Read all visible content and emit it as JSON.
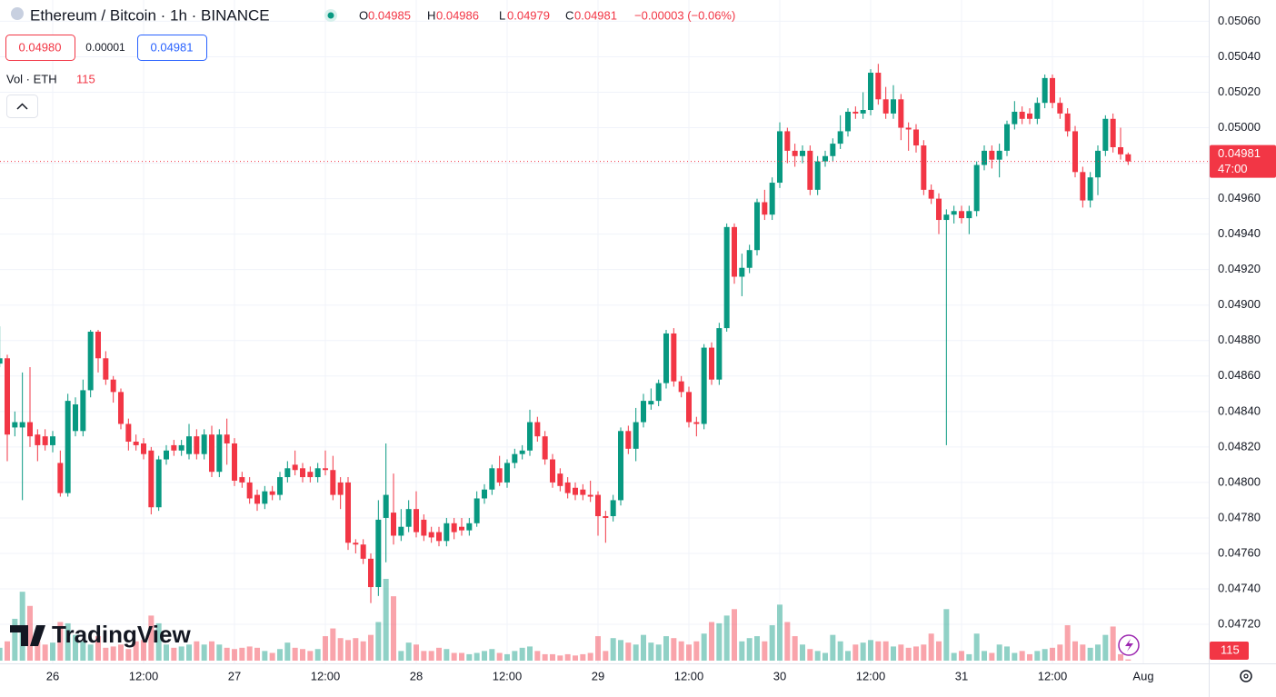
{
  "chart_data": {
    "type": "candlestick",
    "title": "Ethereum / Bitcoin · 1h · BINANCE",
    "ohlc_letters": [
      "O",
      "H",
      "L",
      "C"
    ],
    "change": "−0.00003 (−0.06%)",
    "bid": "0.04980",
    "spread": "0.00001",
    "ask": "0.04981",
    "volume_title": "Vol · ETH",
    "countdown": "47:00",
    "watermark": "TradingView",
    "up_color": "#089981",
    "down_color": "#f23645",
    "grid": true,
    "ylim": [
      0.04698,
      0.05072
    ],
    "yticks": [
      {
        "value": 0.0506,
        "label": "0.05060"
      },
      {
        "value": 0.0504,
        "label": "0.05040"
      },
      {
        "value": 0.0502,
        "label": "0.05020"
      },
      {
        "value": 0.05,
        "label": "0.05000"
      },
      {
        "value": 0.0498,
        "label": "0.04980"
      },
      {
        "value": 0.0496,
        "label": "0.04960"
      },
      {
        "value": 0.0494,
        "label": "0.04940"
      },
      {
        "value": 0.0492,
        "label": "0.04920"
      },
      {
        "value": 0.049,
        "label": "0.04900"
      },
      {
        "value": 0.0488,
        "label": "0.04880"
      },
      {
        "value": 0.0486,
        "label": "0.04860"
      },
      {
        "value": 0.0484,
        "label": "0.04840"
      },
      {
        "value": 0.0482,
        "label": "0.04820"
      },
      {
        "value": 0.048,
        "label": "0.04800"
      },
      {
        "value": 0.0478,
        "label": "0.04780"
      },
      {
        "value": 0.0476,
        "label": "0.04760"
      },
      {
        "value": 0.0474,
        "label": "0.04740"
      },
      {
        "value": 0.0472,
        "label": "0.04720"
      }
    ],
    "xticks": [
      "26",
      "12:00",
      "27",
      "12:00",
      "28",
      "12:00",
      "29",
      "12:00",
      "30",
      "12:00",
      "31",
      "12:00",
      "Aug"
    ],
    "open": [
      0.04867,
      0.0487,
      0.04831,
      0.04831,
      0.04834,
      0.04827,
      0.04826,
      0.04821,
      0.04811,
      0.04794,
      0.04829,
      0.04829,
      0.04852,
      0.04885,
      0.0487,
      0.04858,
      0.04851,
      0.04833,
      0.04823,
      0.04822,
      0.04818,
      0.04786,
      0.04813,
      0.04821,
      0.04818,
      0.04816,
      0.04826,
      0.04816,
      0.04827,
      0.04806,
      0.04827,
      0.04822,
      0.04803,
      0.048,
      0.04793,
      0.04788,
      0.04795,
      0.04793,
      0.04803,
      0.0481,
      0.04808,
      0.04806,
      0.04803,
      0.04808,
      0.04807,
      0.048,
      0.048,
      0.04766,
      0.04765,
      0.04757,
      0.04741,
      0.0478,
      0.04783,
      0.0477,
      0.04775,
      0.04785,
      0.04779,
      0.04772,
      0.04772,
      0.04767,
      0.04777,
      0.04775,
      0.04773,
      0.04777,
      0.04791,
      0.04796,
      0.04808,
      0.048,
      0.04811,
      0.04816,
      0.04818,
      0.04834,
      0.04826,
      0.04813,
      0.04805,
      0.048,
      0.04797,
      0.04796,
      0.04793,
      0.04793,
      0.04781,
      0.04781,
      0.0479,
      0.04829,
      0.04819,
      0.04834,
      0.04844,
      0.04846,
      0.04856,
      0.04884,
      0.04857,
      0.04851,
      0.04834,
      0.04833,
      0.04876,
      0.04858,
      0.04887,
      0.04944,
      0.04916,
      0.04921,
      0.04931,
      0.04958,
      0.04951,
      0.04969,
      0.04998,
      0.04987,
      0.04984,
      0.04987,
      0.04965,
      0.04981,
      0.04984,
      0.04991,
      0.04998,
      0.05009,
      0.05008,
      0.0501,
      0.05031,
      0.05016,
      0.05008,
      0.05016,
      0.05,
      0.04999,
      0.0499,
      0.04965,
      0.0496,
      0.04948,
      0.04951,
      0.04953,
      0.04949,
      0.04953,
      0.04979,
      0.04987,
      0.04982,
      0.04987,
      0.05002,
      0.05009,
      0.05008,
      0.05005,
      0.05014,
      0.05028,
      0.05014,
      0.05008,
      0.04998,
      0.04975,
      0.04959,
      0.04972,
      0.04987,
      0.05005,
      0.04989,
      0.04985
    ],
    "high": [
      0.04888,
      0.04872,
      0.0484,
      0.04862,
      0.04865,
      0.0483,
      0.0483,
      0.04829,
      0.04818,
      0.0485,
      0.04848,
      0.04858,
      0.04886,
      0.04886,
      0.04874,
      0.0486,
      0.04853,
      0.04836,
      0.04827,
      0.04825,
      0.0482,
      0.04815,
      0.04821,
      0.04824,
      0.04824,
      0.04833,
      0.0483,
      0.0483,
      0.04832,
      0.0483,
      0.04836,
      0.04825,
      0.04806,
      0.04803,
      0.04796,
      0.04798,
      0.04798,
      0.04806,
      0.04812,
      0.04818,
      0.04811,
      0.04809,
      0.04811,
      0.04818,
      0.04815,
      0.04803,
      0.04803,
      0.04768,
      0.04768,
      0.0476,
      0.0479,
      0.04822,
      0.04805,
      0.04785,
      0.0479,
      0.04795,
      0.04782,
      0.04775,
      0.04775,
      0.0478,
      0.0478,
      0.0478,
      0.0478,
      0.04795,
      0.04799,
      0.0481,
      0.04815,
      0.04813,
      0.04819,
      0.04821,
      0.04841,
      0.04837,
      0.04829,
      0.04816,
      0.04808,
      0.04803,
      0.048,
      0.04799,
      0.04801,
      0.04795,
      0.04784,
      0.04793,
      0.04831,
      0.04832,
      0.04842,
      0.0485,
      0.04853,
      0.04858,
      0.04886,
      0.04887,
      0.0486,
      0.04854,
      0.04837,
      0.04878,
      0.04879,
      0.0489,
      0.04946,
      0.04946,
      0.04929,
      0.04934,
      0.0496,
      0.04965,
      0.04972,
      0.05003,
      0.05,
      0.04991,
      0.0499,
      0.0499,
      0.04984,
      0.04987,
      0.04994,
      0.05007,
      0.05011,
      0.05012,
      0.0502,
      0.05033,
      0.05036,
      0.05023,
      0.05024,
      0.05019,
      0.05003,
      0.05002,
      0.04993,
      0.04968,
      0.04963,
      0.04954,
      0.04956,
      0.04956,
      0.04956,
      0.04981,
      0.0499,
      0.0499,
      0.04991,
      0.05004,
      0.05015,
      0.05012,
      0.05011,
      0.05017,
      0.0503,
      0.0503,
      0.05017,
      0.05011,
      0.05001,
      0.04978,
      0.04975,
      0.0499,
      0.05007,
      0.05008,
      0.05,
      0.04986
    ],
    "low": [
      0.04865,
      0.04812,
      0.04826,
      0.0479,
      0.0482,
      0.04812,
      0.04818,
      0.04817,
      0.04792,
      0.04792,
      0.04826,
      0.04826,
      0.04848,
      0.04862,
      0.04855,
      0.04845,
      0.0483,
      0.04818,
      0.04818,
      0.04813,
      0.04782,
      0.04784,
      0.0481,
      0.04815,
      0.04815,
      0.04813,
      0.04813,
      0.04813,
      0.04803,
      0.04803,
      0.0481,
      0.04798,
      0.04797,
      0.04788,
      0.04784,
      0.04785,
      0.0479,
      0.0479,
      0.048,
      0.04804,
      0.048,
      0.048,
      0.048,
      0.04804,
      0.0479,
      0.04785,
      0.04762,
      0.0476,
      0.04754,
      0.04732,
      0.04736,
      0.04755,
      0.04765,
      0.04767,
      0.04772,
      0.04769,
      0.04767,
      0.04766,
      0.04764,
      0.04764,
      0.04768,
      0.0477,
      0.0477,
      0.04775,
      0.04788,
      0.04793,
      0.04798,
      0.04797,
      0.04808,
      0.04813,
      0.04815,
      0.04823,
      0.0481,
      0.04797,
      0.04795,
      0.04791,
      0.0479,
      0.0479,
      0.04789,
      0.0477,
      0.04766,
      0.04778,
      0.04787,
      0.04816,
      0.04812,
      0.04831,
      0.04841,
      0.04843,
      0.04853,
      0.04854,
      0.04848,
      0.04831,
      0.04826,
      0.0483,
      0.04855,
      0.04855,
      0.04885,
      0.04912,
      0.04905,
      0.04918,
      0.04928,
      0.04948,
      0.04948,
      0.04966,
      0.0498,
      0.04978,
      0.0498,
      0.04962,
      0.04962,
      0.04978,
      0.04981,
      0.04988,
      0.04995,
      0.05005,
      0.05005,
      0.05007,
      0.05013,
      0.05005,
      0.05005,
      0.04993,
      0.04987,
      0.04986,
      0.04962,
      0.04957,
      0.0494,
      0.04821,
      0.04946,
      0.04946,
      0.0494,
      0.0495,
      0.04976,
      0.04977,
      0.04972,
      0.04984,
      0.04999,
      0.05002,
      0.05002,
      0.05002,
      0.05011,
      0.05011,
      0.05005,
      0.04995,
      0.04972,
      0.04955,
      0.04955,
      0.04962,
      0.04984,
      0.04986,
      0.04982,
      0.04979
    ],
    "close": [
      0.0487,
      0.04827,
      0.04834,
      0.04834,
      0.04826,
      0.04821,
      0.04821,
      0.04826,
      0.04794,
      0.04846,
      0.04844,
      0.04852,
      0.04885,
      0.0487,
      0.04858,
      0.04851,
      0.04833,
      0.04823,
      0.04821,
      0.04816,
      0.04786,
      0.04813,
      0.04818,
      0.04818,
      0.04821,
      0.04826,
      0.04816,
      0.04827,
      0.04806,
      0.04827,
      0.04822,
      0.04801,
      0.048,
      0.04791,
      0.04788,
      0.04795,
      0.04793,
      0.04803,
      0.04808,
      0.04807,
      0.04803,
      0.04803,
      0.04808,
      0.04807,
      0.04793,
      0.04793,
      0.04766,
      0.04765,
      0.04757,
      0.04741,
      0.04779,
      0.04793,
      0.0477,
      0.04775,
      0.04785,
      0.04772,
      0.0477,
      0.04769,
      0.04767,
      0.04777,
      0.04772,
      0.04773,
      0.04777,
      0.04791,
      0.04796,
      0.04808,
      0.048,
      0.04811,
      0.04816,
      0.04818,
      0.04834,
      0.04826,
      0.04813,
      0.048,
      0.04798,
      0.04794,
      0.04793,
      0.04793,
      0.04792,
      0.04781,
      0.0478,
      0.0479,
      0.04829,
      0.04819,
      0.04834,
      0.04846,
      0.04846,
      0.04856,
      0.04884,
      0.04857,
      0.04851,
      0.04834,
      0.04833,
      0.04876,
      0.04858,
      0.04887,
      0.04944,
      0.04916,
      0.04921,
      0.04931,
      0.04958,
      0.04951,
      0.04969,
      0.04998,
      0.04987,
      0.04984,
      0.04987,
      0.04965,
      0.04981,
      0.04984,
      0.04991,
      0.04998,
      0.05009,
      0.05008,
      0.0501,
      0.05031,
      0.05016,
      0.05008,
      0.05016,
      0.05,
      0.04999,
      0.0499,
      0.04965,
      0.0496,
      0.04948,
      0.04951,
      0.04953,
      0.04949,
      0.04953,
      0.04979,
      0.04987,
      0.04982,
      0.04987,
      0.05002,
      0.05009,
      0.05005,
      0.05005,
      0.05014,
      0.05028,
      0.05014,
      0.05008,
      0.04998,
      0.04975,
      0.04959,
      0.04972,
      0.04987,
      0.05005,
      0.04989,
      0.04985,
      0.04981
    ],
    "volumes": [
      1200,
      1800,
      3900,
      6420,
      5100,
      1800,
      1500,
      1680,
      3600,
      3480,
      2400,
      1800,
      1500,
      2280,
      1200,
      1320,
      1500,
      1080,
      1800,
      1920,
      4200,
      3480,
      1500,
      1200,
      1320,
      1500,
      1800,
      1500,
      1800,
      1500,
      1200,
      1080,
      1200,
      1320,
      1200,
      900,
      720,
      1080,
      1680,
      1200,
      1080,
      900,
      1080,
      2280,
      3000,
      2100,
      1920,
      2100,
      1800,
      2400,
      3600,
      7620,
      6000,
      900,
      1680,
      1500,
      900,
      900,
      1200,
      1080,
      720,
      720,
      600,
      720,
      900,
      1080,
      720,
      600,
      900,
      1200,
      1320,
      900,
      600,
      600,
      480,
      600,
      480,
      600,
      720,
      2280,
      900,
      2100,
      1920,
      1680,
      1500,
      2400,
      1680,
      1500,
      2280,
      2100,
      1800,
      1500,
      1800,
      2520,
      3600,
      3480,
      4200,
      4800,
      1800,
      2100,
      2280,
      1800,
      3300,
      5220,
      3600,
      2280,
      1500,
      1080,
      900,
      720,
      2400,
      1800,
      900,
      1500,
      1680,
      1920,
      1800,
      1800,
      1320,
      1500,
      1200,
      1320,
      1500,
      2520,
      1800,
      4800,
      720,
      900,
      600,
      2520,
      900,
      720,
      1500,
      1320,
      720,
      900,
      600,
      900,
      1080,
      1200,
      1500,
      3300,
      1800,
      1500,
      1200,
      1500,
      2400,
      3180,
      600,
      115
    ]
  }
}
